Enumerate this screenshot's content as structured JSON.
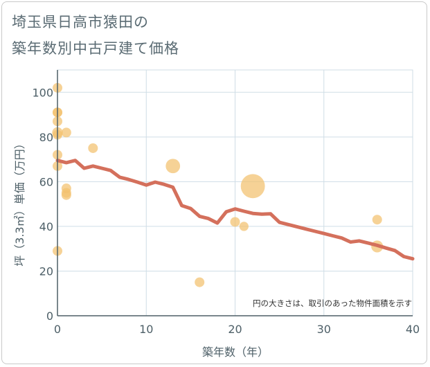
{
  "title_line1": "埼玉県日高市猿田の",
  "title_line2": "築年数別中古戸建て価格",
  "chart_data": {
    "type": "scatter",
    "xlabel": "築年数（年）",
    "ylabel": "坪（3.3㎡）単価（万円）",
    "xlim": [
      0,
      40
    ],
    "ylim": [
      0,
      110
    ],
    "xticks": [
      0,
      10,
      20,
      30,
      40
    ],
    "yticks": [
      0,
      20,
      40,
      60,
      80,
      100
    ],
    "grid": true,
    "annotation": "円の大きさは、取引のあった物件面積を示す",
    "colors": {
      "points": "#f2c06e",
      "line": "#d4705c",
      "grid": "#cfdde6",
      "axis": "#4d5f67"
    },
    "scatter_points": [
      {
        "x": 0,
        "y": 102,
        "size": 1
      },
      {
        "x": 0,
        "y": 91,
        "size": 1
      },
      {
        "x": 0,
        "y": 91,
        "size": 1
      },
      {
        "x": 0,
        "y": 87,
        "size": 1
      },
      {
        "x": 0,
        "y": 82,
        "size": 1.2
      },
      {
        "x": 0,
        "y": 81,
        "size": 1
      },
      {
        "x": 0,
        "y": 72,
        "size": 1
      },
      {
        "x": 0,
        "y": 67,
        "size": 1
      },
      {
        "x": 0,
        "y": 29,
        "size": 1
      },
      {
        "x": 1,
        "y": 82,
        "size": 1
      },
      {
        "x": 1,
        "y": 57,
        "size": 1
      },
      {
        "x": 1,
        "y": 55,
        "size": 1
      },
      {
        "x": 1,
        "y": 54,
        "size": 1
      },
      {
        "x": 4,
        "y": 75,
        "size": 1
      },
      {
        "x": 13,
        "y": 67,
        "size": 2.2
      },
      {
        "x": 16,
        "y": 15,
        "size": 1
      },
      {
        "x": 20,
        "y": 42,
        "size": 1
      },
      {
        "x": 21,
        "y": 40,
        "size": 0.9
      },
      {
        "x": 22,
        "y": 58,
        "size": 6.2
      },
      {
        "x": 36,
        "y": 43,
        "size": 1
      },
      {
        "x": 36,
        "y": 31,
        "size": 1.5
      }
    ],
    "trend_line": {
      "x": [
        0,
        1,
        2,
        3,
        4,
        5,
        6,
        7,
        8,
        9,
        10,
        11,
        12,
        13,
        14,
        15,
        16,
        17,
        18,
        19,
        20,
        21,
        22,
        23,
        24,
        25,
        26,
        27,
        28,
        29,
        30,
        31,
        32,
        33,
        34,
        35,
        36,
        37,
        38,
        39,
        40
      ],
      "y": [
        69.5,
        68.5,
        69.5,
        66,
        67,
        66,
        65,
        62,
        61,
        59.8,
        58.5,
        59.8,
        58.8,
        57.5,
        49.3,
        48,
        44.5,
        43.5,
        41.5,
        46.5,
        47.8,
        46.8,
        45.8,
        45.5,
        45.6,
        41.8,
        40.8,
        39.8,
        38.8,
        37.8,
        36.8,
        35.8,
        34.8,
        33,
        33.5,
        32.5,
        31.5,
        30.3,
        29.2,
        26.5,
        25.5
      ]
    }
  }
}
